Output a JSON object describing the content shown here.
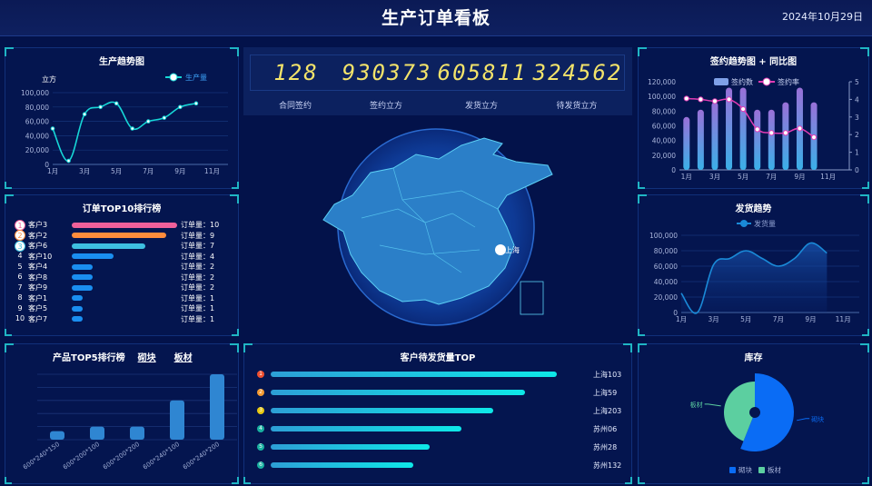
{
  "header": {
    "title": "生产订单看板",
    "date": "2024年10月29日"
  },
  "production": {
    "title": "生产趋势图",
    "unit": "立方",
    "legend": "生产量",
    "color": "#16d6d6",
    "chart_data": {
      "type": "line",
      "x": [
        1,
        2,
        3,
        4,
        5,
        6,
        7,
        8,
        9,
        10
      ],
      "values": [
        50000,
        5000,
        70000,
        80000,
        85000,
        50000,
        60000,
        65000,
        80000,
        85000
      ],
      "xticks": [
        "1月",
        "3月",
        "5月",
        "7月",
        "9月",
        "11月"
      ],
      "yticks": [
        "0",
        "20,000",
        "40,000",
        "60,000",
        "80,000",
        "100,000"
      ],
      "ylim": [
        0,
        100000
      ],
      "xlim": [
        1,
        12
      ]
    }
  },
  "signing": {
    "title": "签约趋势图 + 同比图",
    "legend_bar": "签约数",
    "legend_line": "签约率",
    "chart_data": {
      "type": "bar+line",
      "x": [
        1,
        2,
        3,
        4,
        5,
        6,
        7,
        8,
        9,
        10
      ],
      "bars": [
        72000,
        82000,
        92000,
        112000,
        112000,
        82000,
        82000,
        92000,
        112000,
        92000
      ],
      "line": [
        4.05,
        4.0,
        3.9,
        4.0,
        3.45,
        2.3,
        2.1,
        2.1,
        2.35,
        1.85
      ],
      "xticks": [
        "1月",
        "3月",
        "5月",
        "7月",
        "9月",
        "11月"
      ],
      "yticks": [
        "0",
        "20,000",
        "40,000",
        "60,000",
        "80,000",
        "100,000",
        "120,000"
      ],
      "y2ticks": [
        "0",
        "1",
        "2",
        "3",
        "4",
        "5"
      ],
      "ylim": [
        0,
        120000
      ],
      "y2lim": [
        0,
        5
      ]
    }
  },
  "top10": {
    "title": "订单TOP10排行榜",
    "value_prefix": "订单量：",
    "items": [
      {
        "rank": "1",
        "name": "客户3",
        "value": 10,
        "color": "#f0609a"
      },
      {
        "rank": "2",
        "name": "客户2",
        "value": 9,
        "color": "#ff8c3c"
      },
      {
        "rank": "3",
        "name": "客户6",
        "value": 7,
        "color": "#3ebfe0"
      },
      {
        "rank": "4",
        "name": "客户10",
        "value": 4,
        "color": "#1a8ef0"
      },
      {
        "rank": "5",
        "name": "客户4",
        "value": 2,
        "color": "#1a8ef0"
      },
      {
        "rank": "6",
        "name": "客户8",
        "value": 2,
        "color": "#1a8ef0"
      },
      {
        "rank": "7",
        "name": "客户9",
        "value": 2,
        "color": "#1a8ef0"
      },
      {
        "rank": "8",
        "name": "客户1",
        "value": 1,
        "color": "#1a8ef0"
      },
      {
        "rank": "9",
        "name": "客户5",
        "value": 1,
        "color": "#1a8ef0"
      },
      {
        "rank": "10",
        "name": "客户7",
        "value": 1,
        "color": "#1a8ef0"
      }
    ]
  },
  "products": {
    "title": "产品TOP5排行榜",
    "tab1": "砌块",
    "tab2": "板材",
    "chart_data": {
      "type": "bar",
      "categories": [
        "600*240*150",
        "600*200*100",
        "600*200*200",
        "600*240*100",
        "600*240*200"
      ],
      "values": [
        0.65,
        1,
        1,
        3,
        5
      ],
      "ylim": [
        0,
        5
      ]
    }
  },
  "stats": [
    {
      "value": "128",
      "label": "合同签约"
    },
    {
      "value": "930373",
      "label": "签约立方"
    },
    {
      "value": "605811",
      "label": "发货立方"
    },
    {
      "value": "324562",
      "label": "待发货立方"
    }
  ],
  "map": {
    "label": "上海"
  },
  "customers": {
    "title": "客户待发货量TOP",
    "items": [
      {
        "rank": "1",
        "label": "上海103",
        "share": 1.0,
        "color": "#f05030"
      },
      {
        "rank": "2",
        "label": "上海59",
        "share": 0.889,
        "color": "#f59a30"
      },
      {
        "rank": "3",
        "label": "上海203",
        "share": 0.778,
        "color": "#e8c810"
      },
      {
        "rank": "4",
        "label": "苏州06",
        "share": 0.667,
        "color": "#19b0a0"
      },
      {
        "rank": "5",
        "label": "苏州28",
        "share": 0.556,
        "color": "#19b0a0"
      },
      {
        "rank": "6",
        "label": "苏州132",
        "share": 0.497,
        "color": "#19b0a0"
      }
    ]
  },
  "shipping": {
    "title": "发货趋势",
    "legend": "发货量",
    "color": "#1a8ad8",
    "chart_data": {
      "type": "area",
      "x": [
        1,
        2,
        3,
        4,
        5,
        6,
        7,
        8,
        9,
        10
      ],
      "values": [
        25000,
        0,
        62000,
        70000,
        80000,
        70000,
        60000,
        70000,
        90000,
        77000
      ],
      "xticks": [
        "1月",
        "3月",
        "5月",
        "7月",
        "9月",
        "11月"
      ],
      "yticks": [
        "0",
        "20,000",
        "40,000",
        "60,000",
        "80,000",
        "100,000"
      ],
      "ylim": [
        0,
        100000
      ],
      "xlim": [
        1,
        12
      ]
    }
  },
  "inventory": {
    "title": "库存",
    "chart_data": {
      "type": "pie",
      "labels": [
        "砌块",
        "板材"
      ],
      "values": [
        56,
        44
      ],
      "colors": [
        "#0a6cf5",
        "#5ccfa0"
      ]
    }
  }
}
